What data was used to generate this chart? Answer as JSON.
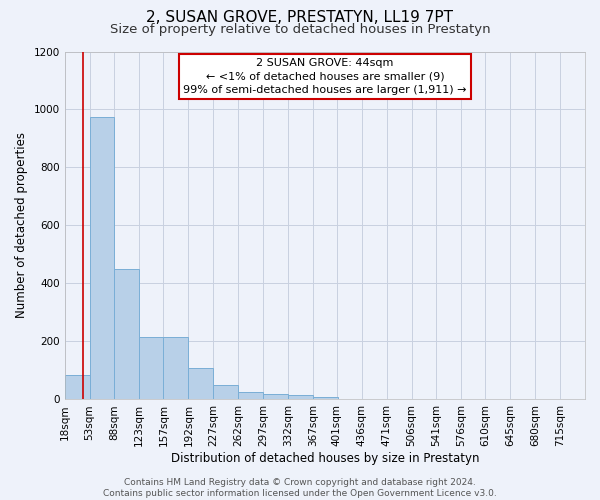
{
  "title": "2, SUSAN GROVE, PRESTATYN, LL19 7PT",
  "subtitle": "Size of property relative to detached houses in Prestatyn",
  "xlabel": "Distribution of detached houses by size in Prestatyn",
  "ylabel": "Number of detached properties",
  "bin_labels": [
    "18sqm",
    "53sqm",
    "88sqm",
    "123sqm",
    "157sqm",
    "192sqm",
    "227sqm",
    "262sqm",
    "297sqm",
    "332sqm",
    "367sqm",
    "401sqm",
    "436sqm",
    "471sqm",
    "506sqm",
    "541sqm",
    "576sqm",
    "610sqm",
    "645sqm",
    "680sqm",
    "715sqm"
  ],
  "bin_edges": [
    18,
    53,
    88,
    123,
    157,
    192,
    227,
    262,
    297,
    332,
    367,
    401,
    436,
    471,
    506,
    541,
    576,
    610,
    645,
    680,
    715
  ],
  "bar_heights": [
    85,
    975,
    450,
    215,
    215,
    110,
    50,
    25,
    20,
    15,
    10,
    0,
    0,
    0,
    0,
    0,
    0,
    0,
    0,
    0
  ],
  "bar_color": "#b8d0e8",
  "bar_edge_color": "#7aaed6",
  "vline_x": 44,
  "vline_color": "#cc0000",
  "annotation_line1": "2 SUSAN GROVE: 44sqm",
  "annotation_line2": "← <1% of detached houses are smaller (9)",
  "annotation_line3": "99% of semi-detached houses are larger (1,911) →",
  "annotation_box_color": "#ffffff",
  "annotation_box_edge": "#cc0000",
  "ylim": [
    0,
    1200
  ],
  "yticks": [
    0,
    200,
    400,
    600,
    800,
    1000,
    1200
  ],
  "grid_color": "#c8d0e0",
  "background_color": "#eef2fa",
  "footer_text": "Contains HM Land Registry data © Crown copyright and database right 2024.\nContains public sector information licensed under the Open Government Licence v3.0.",
  "title_fontsize": 11,
  "subtitle_fontsize": 9.5,
  "axis_label_fontsize": 8.5,
  "tick_fontsize": 7.5,
  "annotation_fontsize": 8,
  "footer_fontsize": 6.5
}
